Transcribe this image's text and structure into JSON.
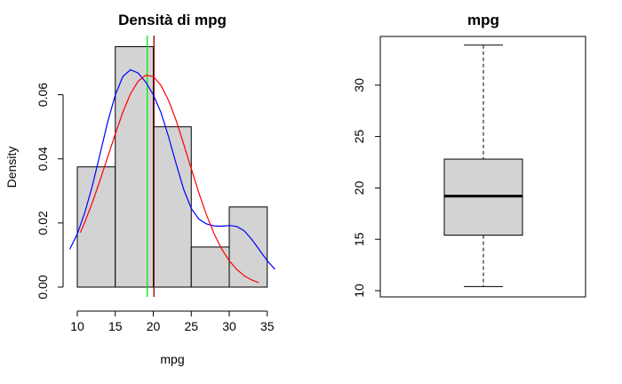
{
  "chart_data": [
    {
      "type": "histogram",
      "title": "Densità di mpg",
      "xlabel": "mpg",
      "ylabel": "Density",
      "xlim": [
        10,
        35
      ],
      "ylim": [
        0,
        0.075
      ],
      "x_ticks": [
        "10",
        "15",
        "20",
        "25",
        "30",
        "35"
      ],
      "y_ticks": [
        "0.00",
        "0.02",
        "0.04",
        "0.06"
      ],
      "bins": [
        {
          "from": 10,
          "to": 15,
          "density": 0.0375
        },
        {
          "from": 15,
          "to": 20,
          "density": 0.075
        },
        {
          "from": 20,
          "to": 25,
          "density": 0.05
        },
        {
          "from": 25,
          "to": 30,
          "density": 0.0125
        },
        {
          "from": 30,
          "to": 35,
          "density": 0.025
        }
      ],
      "bar_color": "#d3d3d3",
      "curves": [
        {
          "color": "#0000ff",
          "points": [
            [
              9.0,
              0.0118
            ],
            [
              10.0,
              0.0166
            ],
            [
              11.0,
              0.0233
            ],
            [
              12.0,
              0.0318
            ],
            [
              13.0,
              0.0416
            ],
            [
              14.0,
              0.0515
            ],
            [
              15.0,
              0.06
            ],
            [
              16.0,
              0.0657
            ],
            [
              17.0,
              0.0678
            ],
            [
              18.0,
              0.0668
            ],
            [
              19.0,
              0.064
            ],
            [
              20.0,
              0.06
            ],
            [
              21.0,
              0.0545
            ],
            [
              22.0,
              0.047
            ],
            [
              23.0,
              0.0385
            ],
            [
              24.0,
              0.0305
            ],
            [
              25.0,
              0.0245
            ],
            [
              26.0,
              0.0212
            ],
            [
              27.0,
              0.0197
            ],
            [
              28.0,
              0.0191
            ],
            [
              29.0,
              0.019
            ],
            [
              30.0,
              0.0192
            ],
            [
              31.0,
              0.0189
            ],
            [
              32.0,
              0.0175
            ],
            [
              33.0,
              0.0148
            ],
            [
              34.0,
              0.0115
            ],
            [
              35.0,
              0.0082
            ],
            [
              36.0,
              0.0056
            ]
          ]
        },
        {
          "color": "#ff0000",
          "points": [
            [
              10.4,
              0.017
            ],
            [
              11.0,
              0.0203
            ],
            [
              12.0,
              0.0265
            ],
            [
              13.0,
              0.0334
            ],
            [
              14.0,
              0.0406
            ],
            [
              15.0,
              0.0478
            ],
            [
              16.0,
              0.0546
            ],
            [
              17.0,
              0.0603
            ],
            [
              18.0,
              0.0642
            ],
            [
              19.0,
              0.0661
            ],
            [
              20.0,
              0.0657
            ],
            [
              21.0,
              0.063
            ],
            [
              22.0,
              0.0583
            ],
            [
              23.0,
              0.052
            ],
            [
              24.0,
              0.0446
            ],
            [
              25.0,
              0.0369
            ],
            [
              26.0,
              0.0294
            ],
            [
              27.0,
              0.0225
            ],
            [
              28.0,
              0.0167
            ],
            [
              29.0,
              0.0119
            ],
            [
              30.0,
              0.0082
            ],
            [
              31.0,
              0.0055
            ],
            [
              32.0,
              0.0035
            ],
            [
              33.0,
              0.0022
            ],
            [
              33.9,
              0.0014
            ]
          ]
        }
      ],
      "vlines": [
        {
          "x": 19.2,
          "color": "#00ee00"
        },
        {
          "x": 20.09,
          "color": "#8b0000"
        }
      ]
    },
    {
      "type": "box",
      "title": "mpg",
      "ylim": [
        9.1,
        35.2
      ],
      "y_ticks": [
        "10",
        "15",
        "20",
        "25",
        "30"
      ],
      "box": {
        "min": 10.4,
        "q1": 15.4,
        "median": 19.2,
        "q3": 22.8,
        "max": 33.9
      },
      "box_color": "#d3d3d3"
    }
  ]
}
